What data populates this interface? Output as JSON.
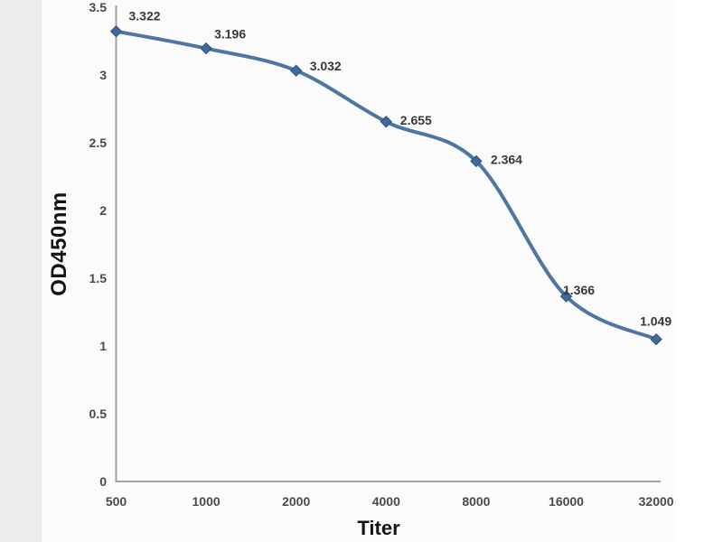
{
  "chart_data": {
    "type": "line",
    "smooth": true,
    "title": "",
    "xlabel": "Titer",
    "ylabel": "OD450nm",
    "categories": [
      "500",
      "1000",
      "2000",
      "4000",
      "8000",
      "16000",
      "32000"
    ],
    "x": [
      500,
      1000,
      2000,
      4000,
      8000,
      16000,
      32000
    ],
    "values": [
      3.322,
      3.196,
      3.032,
      2.655,
      2.364,
      1.366,
      1.049
    ],
    "data_labels": [
      "3.322",
      "3.196",
      "3.032",
      "2.655",
      "2.364",
      "1.366",
      "1.049"
    ],
    "yticks": [
      "0",
      "0.5",
      "1",
      "1.5",
      "2",
      "2.5",
      "3",
      "3.5"
    ],
    "ytick_step": 0.5,
    "ylim": [
      0,
      3.5
    ],
    "grid": false,
    "legend": "none",
    "colors": {
      "line": "#4d76a4",
      "marker": "#3f699b",
      "marker_edge": "#30537d",
      "axis": "#a3a3a3",
      "tick_label": "#4a4a4a",
      "data_label": "#383838",
      "axis_title": "#141414",
      "background": "#fbfbfb"
    }
  }
}
